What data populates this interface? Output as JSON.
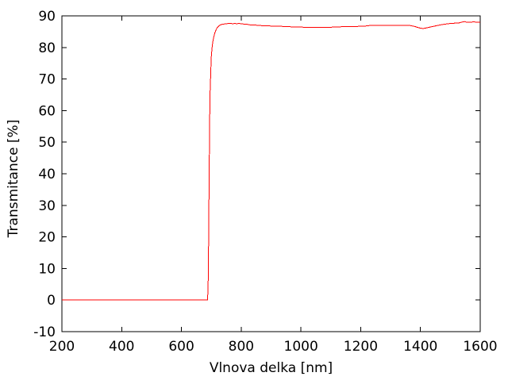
{
  "chart_data": {
    "type": "line",
    "title": "",
    "xlabel": "Vlnova delka [nm]",
    "ylabel": "Transmitance [%]",
    "xlim": [
      200,
      1600
    ],
    "ylim": [
      -10,
      90
    ],
    "x_ticks": [
      200,
      400,
      600,
      800,
      1000,
      1200,
      1400,
      1600
    ],
    "y_ticks": [
      -10,
      0,
      10,
      20,
      30,
      40,
      50,
      60,
      70,
      80,
      90
    ],
    "grid": false,
    "legend": "none",
    "background_color": "#ffffff",
    "axis_color": "#000000",
    "series": [
      {
        "name": "transmittance",
        "color": "#ff0000",
        "points": [
          [
            200,
            0
          ],
          [
            240,
            0
          ],
          [
            280,
            0
          ],
          [
            320,
            0
          ],
          [
            360,
            0
          ],
          [
            400,
            0
          ],
          [
            440,
            0
          ],
          [
            480,
            0
          ],
          [
            520,
            0
          ],
          [
            560,
            0
          ],
          [
            600,
            0
          ],
          [
            630,
            0
          ],
          [
            660,
            0
          ],
          [
            680,
            0
          ],
          [
            687,
            0
          ],
          [
            689,
            3
          ],
          [
            690,
            9
          ],
          [
            691,
            18
          ],
          [
            692,
            30
          ],
          [
            693,
            42
          ],
          [
            694,
            52
          ],
          [
            695,
            60
          ],
          [
            696,
            66
          ],
          [
            698,
            72
          ],
          [
            700,
            77
          ],
          [
            702,
            79.5
          ],
          [
            705,
            81.8
          ],
          [
            708,
            83.2
          ],
          [
            712,
            84.6
          ],
          [
            716,
            85.6
          ],
          [
            720,
            86.3
          ],
          [
            725,
            86.8
          ],
          [
            730,
            87.1
          ],
          [
            736,
            87.3
          ],
          [
            742,
            87.4
          ],
          [
            750,
            87.5
          ],
          [
            758,
            87.6
          ],
          [
            765,
            87.6
          ],
          [
            772,
            87.5
          ],
          [
            778,
            87.6
          ],
          [
            785,
            87.5
          ],
          [
            792,
            87.6
          ],
          [
            800,
            87.5
          ],
          [
            808,
            87.4
          ],
          [
            816,
            87.4
          ],
          [
            825,
            87.2
          ],
          [
            835,
            87.1
          ],
          [
            845,
            87.1
          ],
          [
            855,
            87.0
          ],
          [
            868,
            86.9
          ],
          [
            880,
            86.9
          ],
          [
            895,
            86.8
          ],
          [
            910,
            86.7
          ],
          [
            930,
            86.7
          ],
          [
            950,
            86.6
          ],
          [
            975,
            86.5
          ],
          [
            1000,
            86.5
          ],
          [
            1015,
            86.3
          ],
          [
            1030,
            86.4
          ],
          [
            1050,
            86.4
          ],
          [
            1075,
            86.4
          ],
          [
            1100,
            86.4
          ],
          [
            1125,
            86.5
          ],
          [
            1150,
            86.6
          ],
          [
            1175,
            86.6
          ],
          [
            1200,
            86.7
          ],
          [
            1220,
            86.8
          ],
          [
            1235,
            87.0
          ],
          [
            1260,
            87.0
          ],
          [
            1290,
            87.0
          ],
          [
            1320,
            87.0
          ],
          [
            1350,
            87.0
          ],
          [
            1368,
            86.9
          ],
          [
            1382,
            86.6
          ],
          [
            1392,
            86.3
          ],
          [
            1400,
            86.1
          ],
          [
            1408,
            86.0
          ],
          [
            1416,
            86.1
          ],
          [
            1425,
            86.3
          ],
          [
            1440,
            86.6
          ],
          [
            1455,
            86.9
          ],
          [
            1470,
            87.2
          ],
          [
            1485,
            87.4
          ],
          [
            1500,
            87.6
          ],
          [
            1515,
            87.7
          ],
          [
            1530,
            87.8
          ],
          [
            1542,
            88.1
          ],
          [
            1548,
            88.2
          ],
          [
            1554,
            88.0
          ],
          [
            1565,
            88.0
          ],
          [
            1578,
            88.1
          ],
          [
            1590,
            88.0
          ],
          [
            1600,
            88.0
          ]
        ]
      }
    ]
  }
}
